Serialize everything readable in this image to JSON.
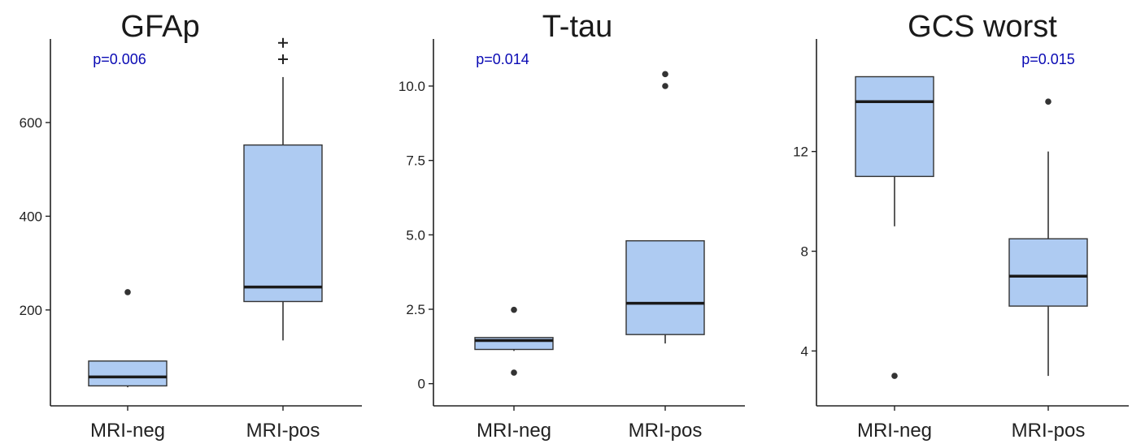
{
  "colors": {
    "box_fill": "#aecbf2",
    "box_stroke": "#333333",
    "median": "#1a1a1a",
    "pvalue": "#0a0ab4",
    "axis": "#222222"
  },
  "chart_data": [
    {
      "type": "box",
      "title": "GFAp",
      "categories": [
        "MRI-neg",
        "MRI-pos"
      ],
      "yticks": [
        200,
        400,
        600
      ],
      "ylim": [
        30,
        735
      ],
      "annotation": {
        "text": "p=0.006",
        "position": "top-left"
      },
      "boxes": [
        {
          "category": "MRI-neg",
          "whisker_low": 35,
          "q1": 38,
          "median": 57,
          "q3": 91,
          "whisker_high": 91,
          "outliers": [
            {
              "value": 238,
              "marker": "dot"
            }
          ]
        },
        {
          "category": "MRI-pos",
          "whisker_low": 135,
          "q1": 218,
          "median": 249,
          "q3": 552,
          "whisker_high": 697,
          "outliers": [
            {
              "value": 770,
              "marker": "plus"
            },
            {
              "value": 735,
              "marker": "plus"
            }
          ]
        }
      ]
    },
    {
      "type": "box",
      "title": "T-tau",
      "categories": [
        "MRI-neg",
        "MRI-pos"
      ],
      "yticks": [
        "0",
        "2.5",
        "5.0",
        "7.5",
        "10.0"
      ],
      "ylim": [
        -0.2,
        10.9
      ],
      "annotation": {
        "text": "p=0.014",
        "position": "top-left"
      },
      "boxes": [
        {
          "category": "MRI-neg",
          "whisker_low": 1.1,
          "q1": 1.15,
          "median": 1.45,
          "q3": 1.55,
          "whisker_high": 1.55,
          "outliers": [
            {
              "value": 2.48,
              "marker": "dot"
            },
            {
              "value": 0.37,
              "marker": "dot"
            }
          ]
        },
        {
          "category": "MRI-pos",
          "whisker_low": 1.35,
          "q1": 1.65,
          "median": 2.7,
          "q3": 4.8,
          "whisker_high": 4.8,
          "outliers": [
            {
              "value": 10.4,
              "marker": "dot"
            },
            {
              "value": 10.0,
              "marker": "dot"
            }
          ]
        }
      ]
    },
    {
      "type": "box",
      "title": "GCS worst",
      "categories": [
        "MRI-neg",
        "MRI-pos"
      ],
      "yticks": [
        4,
        8,
        12
      ],
      "ylim": [
        2.45,
        15.7
      ],
      "annotation": {
        "text": "p=0.015",
        "position": "top-right"
      },
      "boxes": [
        {
          "category": "MRI-neg",
          "whisker_low": 9,
          "q1": 11,
          "median": 14,
          "q3": 15,
          "whisker_high": 15,
          "outliers": [
            {
              "value": 3,
              "marker": "dot"
            }
          ]
        },
        {
          "category": "MRI-pos",
          "whisker_low": 3,
          "q1": 5.8,
          "median": 7,
          "q3": 8.5,
          "whisker_high": 12,
          "outliers": [
            {
              "value": 14,
              "marker": "dot"
            }
          ]
        }
      ]
    }
  ]
}
